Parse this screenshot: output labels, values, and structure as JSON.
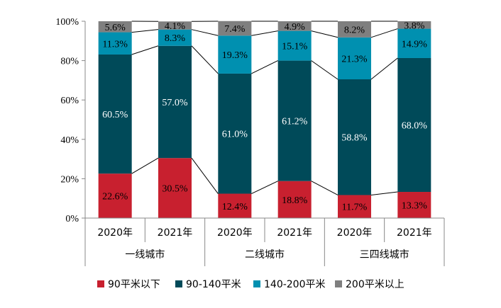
{
  "chart_data": {
    "type": "bar",
    "stacked": true,
    "percent": true,
    "title": "",
    "xlabel": "",
    "ylabel": "",
    "ylim": [
      0,
      100
    ],
    "yticks": [
      "0%",
      "20%",
      "40%",
      "60%",
      "80%",
      "100%"
    ],
    "grid": false,
    "legend_position": "bottom",
    "groups": [
      "一线城市",
      "二线城市",
      "三四线城市"
    ],
    "categories": [
      "2020年",
      "2021年",
      "2020年",
      "2021年",
      "2020年",
      "2021年"
    ],
    "series": [
      {
        "name": "90平米以下",
        "color": "#C8202F",
        "label_color": "#000000",
        "values": [
          22.6,
          30.5,
          12.4,
          18.8,
          11.7,
          13.3
        ],
        "labels": [
          "22.6%",
          "30.5%",
          "12.4%",
          "18.8%",
          "11.7%",
          "13.3%"
        ]
      },
      {
        "name": "90-140平米",
        "color": "#004A59",
        "label_color": "#ffffff",
        "values": [
          60.5,
          57.0,
          61.0,
          61.2,
          58.8,
          68.0
        ],
        "labels": [
          "60.5%",
          "57.0%",
          "61.0%",
          "61.2%",
          "58.8%",
          "68.0%"
        ]
      },
      {
        "name": "140-200平米",
        "color": "#0090B0",
        "label_color": "#000000",
        "values": [
          11.3,
          8.3,
          19.3,
          15.1,
          21.3,
          14.9
        ],
        "labels": [
          "11.3%",
          "8.3%",
          "19.3%",
          "15.1%",
          "21.3%",
          "14.9%"
        ]
      },
      {
        "name": "200平米以上",
        "color": "#7F7F7F",
        "label_color": "#000000",
        "values": [
          5.6,
          4.1,
          7.4,
          4.9,
          8.2,
          3.8
        ],
        "labels": [
          "5.6%",
          "4.1%",
          "7.4%",
          "4.9%",
          "8.2%",
          "3.8%"
        ]
      }
    ]
  }
}
